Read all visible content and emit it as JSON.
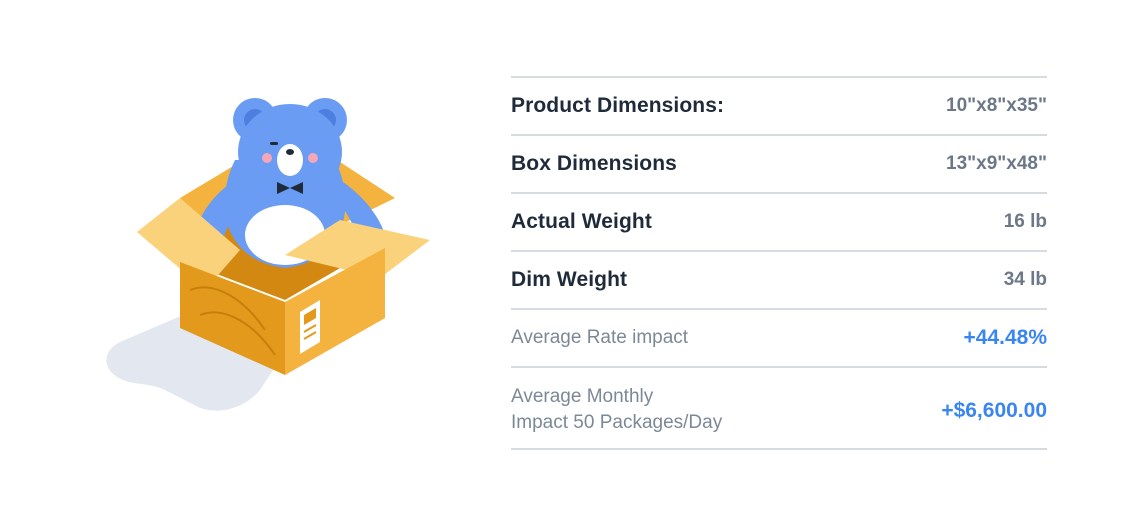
{
  "rows": [
    {
      "label": "Product Dimensions:",
      "value": "10\"x8\"x35\""
    },
    {
      "label": "Box Dimensions",
      "value": "13\"x9\"x48\""
    },
    {
      "label": "Actual Weight",
      "value": "16 lb"
    },
    {
      "label": "Dim Weight",
      "value": "34 lb"
    }
  ],
  "impact": {
    "rate_label": "Average Rate impact",
    "rate_value": "+44.48%",
    "monthly_label_line1": "Average Monthly",
    "monthly_label_line2": "Impact 50 Packages/Day",
    "monthly_value": "+$6,600.00"
  },
  "colors": {
    "accent": "#3a86f0",
    "bear": "#6a9cf3",
    "box_front": "#f4b23e",
    "box_side": "#e39a1c",
    "box_flap": "#fbd27c",
    "shadow": "#e3e8f0",
    "divider": "#d6dbe2"
  },
  "icons": {
    "illustration": "bear-in-box-illustration"
  }
}
